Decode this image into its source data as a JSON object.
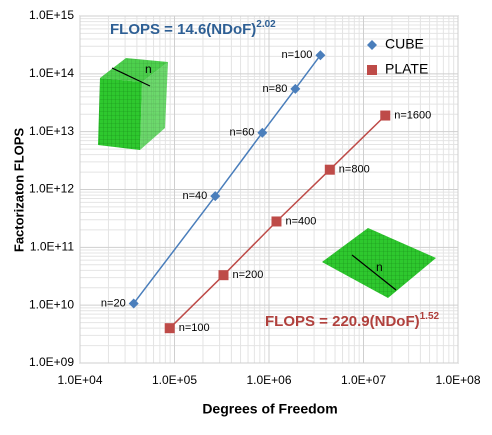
{
  "chart_data": {
    "type": "scatter",
    "xlabel": "Degrees of Freedom",
    "ylabel": "Factorizaton FLOPS",
    "xlog": true,
    "ylog": true,
    "xlim": [
      10000,
      100000000
    ],
    "ylim": [
      1000000000,
      1000000000000000
    ],
    "xticks": [
      {
        "value": 10000,
        "label": "1.0E+04"
      },
      {
        "value": 100000,
        "label": "1.0E+05"
      },
      {
        "value": 1000000,
        "label": "1.0E+06"
      },
      {
        "value": 10000000,
        "label": "1.0E+07"
      },
      {
        "value": 100000000,
        "label": "1.0E+08"
      }
    ],
    "yticks": [
      {
        "value": 1000000000,
        "label": "1.0E+09"
      },
      {
        "value": 10000000000,
        "label": "1.0E+10"
      },
      {
        "value": 100000000000,
        "label": "1.0E+11"
      },
      {
        "value": 1000000000000,
        "label": "1.0E+12"
      },
      {
        "value": 10000000000000,
        "label": "1.0E+13"
      },
      {
        "value": 100000000000000,
        "label": "1.0E+14"
      },
      {
        "value": 1000000000000000,
        "label": "1.0E+15"
      }
    ],
    "grid": true,
    "legend": "upper right",
    "series": [
      {
        "name": "CUBE",
        "color": "#4a7ebb",
        "marker": "diamond",
        "x": [
          37000,
          270000,
          850000,
          1900000,
          3500000
        ],
        "values": [
          10700000000,
          770000000000,
          9600000000000,
          55000000000000,
          210000000000000
        ],
        "point_labels": [
          "n=20",
          "n=40",
          "n=60",
          "n=80",
          "n=100"
        ]
      },
      {
        "name": "PLATE",
        "color": "#be4b48",
        "marker": "square",
        "x": [
          89000,
          330000,
          1200000,
          4400000,
          17000000
        ],
        "values": [
          4000000000,
          33000000000,
          280000000000,
          2200000000000,
          19000000000000
        ],
        "point_labels": [
          "n=100",
          "n=200",
          "n=400",
          "n=800",
          "n=1600"
        ]
      }
    ],
    "annotations": [
      {
        "text": "FLOPS = 14.6(NDoF)",
        "exponent": "2.02",
        "color": "#2e5f94"
      },
      {
        "text": "FLOPS = 220.9(NDoF)",
        "exponent": "1.52",
        "color": "#b0403c"
      }
    ],
    "illustration_labels": [
      "n",
      "n"
    ]
  }
}
